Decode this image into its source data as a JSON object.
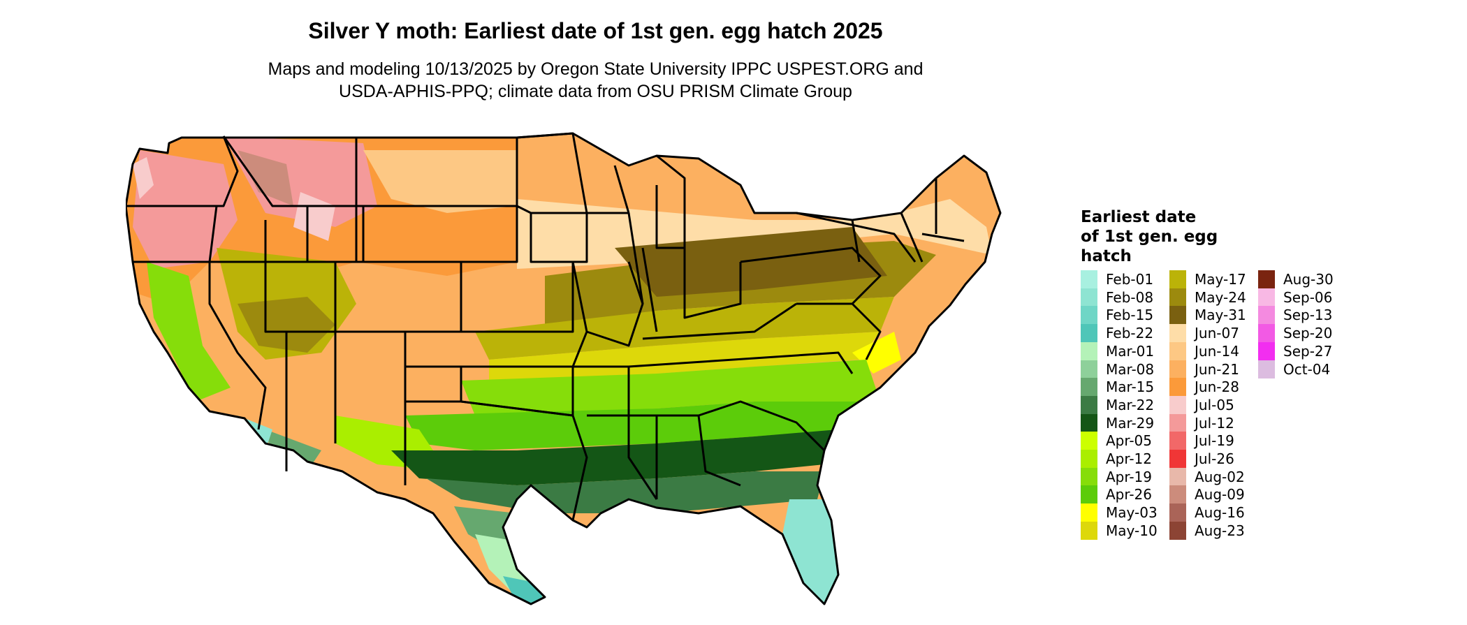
{
  "header": {
    "title": "Silver Y moth: Earliest date of 1st gen. egg hatch 2025",
    "subtitle_line1": "Maps and modeling 10/13/2025 by Oregon State University IPPC USPEST.ORG and",
    "subtitle_line2": "USDA-APHIS-PPQ; climate data from OSU PRISM Climate Group"
  },
  "legend": {
    "title_lines": [
      "Earliest date",
      "of 1st gen. egg",
      "hatch"
    ],
    "columns": [
      [
        {
          "label": "Feb-01",
          "color": "#a8f0e0"
        },
        {
          "label": "Feb-08",
          "color": "#8ee4d2"
        },
        {
          "label": "Feb-15",
          "color": "#6fd6c6"
        },
        {
          "label": "Feb-22",
          "color": "#4fc6b8"
        },
        {
          "label": "Mar-01",
          "color": "#b4f2b8"
        },
        {
          "label": "Mar-08",
          "color": "#8ed09a"
        },
        {
          "label": "Mar-15",
          "color": "#66a86f"
        },
        {
          "label": "Mar-22",
          "color": "#3b7b44"
        },
        {
          "label": "Mar-29",
          "color": "#145616"
        },
        {
          "label": "Apr-05",
          "color": "#ccff00"
        },
        {
          "label": "Apr-12",
          "color": "#aaee00"
        },
        {
          "label": "Apr-19",
          "color": "#86dd0a"
        },
        {
          "label": "Apr-26",
          "color": "#5ccc0a"
        },
        {
          "label": "May-03",
          "color": "#ffff00"
        },
        {
          "label": "May-10",
          "color": "#ddd80a"
        }
      ],
      [
        {
          "label": "May-17",
          "color": "#bbb308"
        },
        {
          "label": "May-24",
          "color": "#9c8a0e"
        },
        {
          "label": "May-31",
          "color": "#7a6010"
        },
        {
          "label": "Jun-07",
          "color": "#fedda8"
        },
        {
          "label": "Jun-14",
          "color": "#fdc884"
        },
        {
          "label": "Jun-21",
          "color": "#fcb060"
        },
        {
          "label": "Jun-28",
          "color": "#fb9a3a"
        },
        {
          "label": "Jul-05",
          "color": "#f8cccc"
        },
        {
          "label": "Jul-12",
          "color": "#f49a9a"
        },
        {
          "label": "Jul-19",
          "color": "#f26868"
        },
        {
          "label": "Jul-26",
          "color": "#f03636"
        },
        {
          "label": "Aug-02",
          "color": "#e8b8aa"
        },
        {
          "label": "Aug-09",
          "color": "#cc8c7c"
        },
        {
          "label": "Aug-16",
          "color": "#aa6458"
        },
        {
          "label": "Aug-23",
          "color": "#8c4434"
        }
      ],
      [
        {
          "label": "Aug-30",
          "color": "#7a2410"
        },
        {
          "label": "Sep-06",
          "color": "#f8b8e4"
        },
        {
          "label": "Sep-13",
          "color": "#f48ae0"
        },
        {
          "label": "Sep-20",
          "color": "#f25ae4"
        },
        {
          "label": "Sep-27",
          "color": "#f22ef0"
        },
        {
          "label": "Oct-04",
          "color": "#dcbce0"
        }
      ]
    ]
  }
}
